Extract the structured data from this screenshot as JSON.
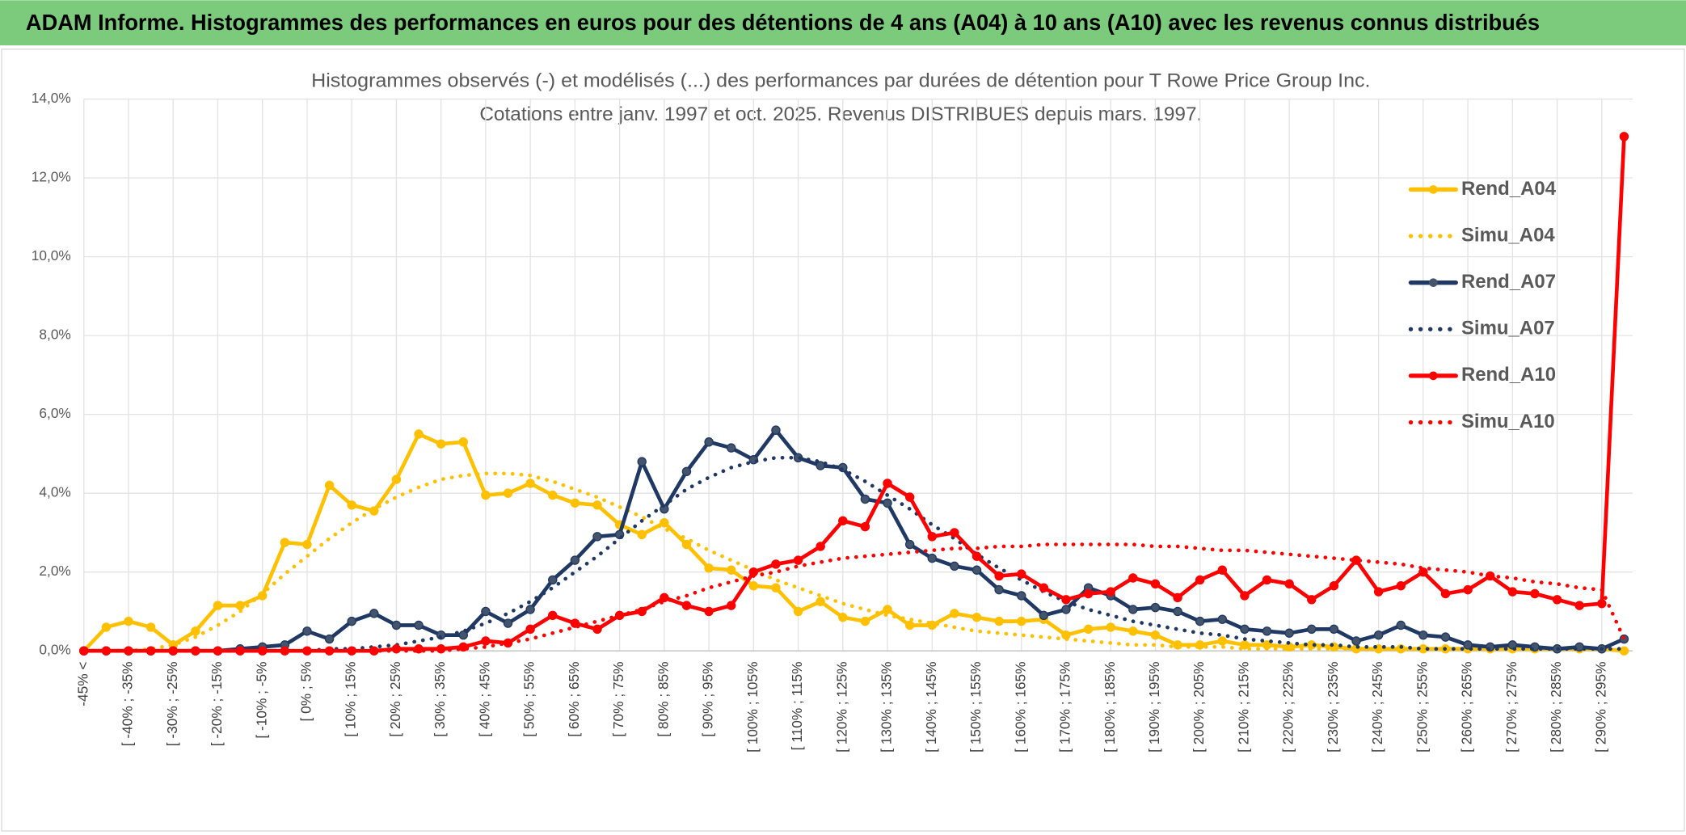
{
  "header": {
    "title": "ADAM Informe. Histogrammes des performances en euros pour des détentions de 4 ans (A04) à 10 ans (A10) avec les revenus connus distribués"
  },
  "chart_data": {
    "type": "line",
    "title": "Histogrammes observés (-) et modélisés (...) des performances par durées de détention pour T Rowe Price Group Inc.",
    "subtitle": "Cotations entre janv. 1997 et oct. 2025. Revenus DISTRIBUES depuis mars. 1997.",
    "categories": [
      "-45% <",
      null,
      "[ -40% ; -35%",
      null,
      "[ -30% ; -25%",
      null,
      "[ -20% ; -15%",
      null,
      "[ -10% ; -5%",
      null,
      "[ 0% ; 5%",
      null,
      "[ 10% ; 15%",
      null,
      "[ 20% ; 25%",
      null,
      "[ 30% ; 35%",
      null,
      "[ 40% ; 45%",
      null,
      "[ 50% ; 55%",
      null,
      "[ 60% ; 65%",
      null,
      "[ 70% ; 75%",
      null,
      "[ 80% ; 85%",
      null,
      "[ 90% ; 95%",
      null,
      "[ 100% ; 105%",
      null,
      "[ 110% ; 115%",
      null,
      "[ 120% ; 125%",
      null,
      "[ 130% ; 135%",
      null,
      "[ 140% ; 145%",
      null,
      "[ 150% ; 155%",
      null,
      "[ 160% ; 165%",
      null,
      "[ 170% ; 175%",
      null,
      "[ 180% ; 185%",
      null,
      "[ 190% ; 195%",
      null,
      "[ 200% ; 205%",
      null,
      "[ 210% ; 215%",
      null,
      "[ 220% ; 225%",
      null,
      "[ 230% ; 235%",
      null,
      "[ 240% ; 245%",
      null,
      "[ 250% ; 255%",
      null,
      "[ 260% ; 265%",
      null,
      "[ 270% ; 275%",
      null,
      "[ 280% ; 285%",
      null,
      "[ 290% ; 295%",
      null
    ],
    "ylim": [
      0,
      14
    ],
    "yticks": [
      {
        "value": 0,
        "label": "0,0%"
      },
      {
        "value": 2,
        "label": "2,0%"
      },
      {
        "value": 4,
        "label": "4,0%"
      },
      {
        "value": 6,
        "label": "6,0%"
      },
      {
        "value": 8,
        "label": "8,0%"
      },
      {
        "value": 10,
        "label": "10,0%"
      },
      {
        "value": 12,
        "label": "12,0%"
      },
      {
        "value": 14,
        "label": "14,0%"
      }
    ],
    "grid": true,
    "legend": "right",
    "series": [
      {
        "name": "Rend_A04",
        "color": "#ffc000",
        "style": "solid",
        "marker": true,
        "values": [
          0,
          0.6,
          0.75,
          0.6,
          0.15,
          0.5,
          1.15,
          1.15,
          1.4,
          2.75,
          2.7,
          4.2,
          3.7,
          3.55,
          4.35,
          5.5,
          5.25,
          5.3,
          3.95,
          4.0,
          4.25,
          3.95,
          3.75,
          3.7,
          3.2,
          2.95,
          3.25,
          2.7,
          2.1,
          2.05,
          1.65,
          1.6,
          1.0,
          1.25,
          0.85,
          0.75,
          1.05,
          0.65,
          0.65,
          0.95,
          0.85,
          0.75,
          0.75,
          0.8,
          0.4,
          0.55,
          0.6,
          0.5,
          0.4,
          0.15,
          0.15,
          0.25,
          0.15,
          0.15,
          0.1,
          0.15,
          0.1,
          0.05,
          0.05,
          0.05,
          0.05,
          0.05,
          0.05,
          0.05,
          0.05,
          0.05,
          0.05,
          0.05,
          0.05,
          0
        ]
      },
      {
        "name": "Simu_A04",
        "color": "#ffc000",
        "style": "dotted",
        "marker": false,
        "values": [
          0,
          0,
          0,
          0.05,
          0.15,
          0.35,
          0.65,
          1.0,
          1.45,
          1.95,
          2.4,
          2.85,
          3.25,
          3.6,
          3.9,
          4.15,
          4.35,
          4.45,
          4.5,
          4.5,
          4.45,
          4.3,
          4.1,
          3.9,
          3.65,
          3.4,
          3.1,
          2.85,
          2.55,
          2.3,
          2.05,
          1.8,
          1.6,
          1.4,
          1.2,
          1.05,
          0.9,
          0.8,
          0.7,
          0.6,
          0.5,
          0.45,
          0.4,
          0.35,
          0.3,
          0.25,
          0.2,
          0.15,
          0.15,
          0.1,
          0.1,
          0.1,
          0.05,
          0.05,
          0.05,
          0.05,
          0.05,
          0.05,
          0.05,
          0.05,
          0.05,
          0.05,
          0.05,
          0.05,
          0.05,
          0.05,
          0.05,
          0.05,
          0.05,
          0
        ]
      },
      {
        "name": "Rend_A07",
        "color": "#1f3864",
        "style": "solid",
        "marker": true,
        "values": [
          0,
          0,
          0,
          0,
          0,
          0,
          0,
          0.05,
          0.1,
          0.15,
          0.5,
          0.3,
          0.75,
          0.95,
          0.65,
          0.65,
          0.4,
          0.4,
          1.0,
          0.7,
          1.05,
          1.8,
          2.3,
          2.9,
          2.95,
          4.8,
          3.6,
          4.55,
          5.3,
          5.15,
          4.85,
          5.6,
          4.9,
          4.7,
          4.65,
          3.85,
          3.75,
          2.7,
          2.35,
          2.15,
          2.05,
          1.55,
          1.4,
          0.9,
          1.05,
          1.6,
          1.4,
          1.05,
          1.1,
          1.0,
          0.75,
          0.8,
          0.55,
          0.5,
          0.45,
          0.55,
          0.55,
          0.25,
          0.4,
          0.65,
          0.4,
          0.35,
          0.15,
          0.1,
          0.15,
          0.1,
          0.05,
          0.1,
          0.05,
          0.3
        ]
      },
      {
        "name": "Simu_A07",
        "color": "#1f3864",
        "style": "dotted",
        "marker": false,
        "values": [
          0,
          0,
          0,
          0,
          0,
          0,
          0,
          0,
          0,
          0,
          0,
          0.05,
          0.05,
          0.1,
          0.15,
          0.25,
          0.35,
          0.5,
          0.7,
          0.95,
          1.25,
          1.6,
          2.0,
          2.4,
          2.85,
          3.3,
          3.7,
          4.1,
          4.4,
          4.65,
          4.8,
          4.9,
          4.9,
          4.8,
          4.6,
          4.3,
          3.95,
          3.6,
          3.2,
          2.85,
          2.45,
          2.1,
          1.8,
          1.5,
          1.25,
          1.05,
          0.9,
          0.75,
          0.65,
          0.55,
          0.45,
          0.4,
          0.3,
          0.25,
          0.2,
          0.15,
          0.15,
          0.1,
          0.1,
          0.1,
          0.05,
          0.05,
          0.05,
          0.05,
          0.05,
          0.05,
          0.05,
          0.05,
          0.05,
          0.05
        ]
      },
      {
        "name": "Rend_A10",
        "color": "#ff0000",
        "style": "solid",
        "marker": true,
        "values": [
          0,
          0,
          0,
          0,
          0,
          0,
          0,
          0,
          0,
          0,
          0,
          0,
          0,
          0,
          0.05,
          0.05,
          0.05,
          0.1,
          0.25,
          0.2,
          0.55,
          0.9,
          0.7,
          0.55,
          0.9,
          1.0,
          1.35,
          1.15,
          1.0,
          1.15,
          2.0,
          2.2,
          2.3,
          2.65,
          3.3,
          3.15,
          4.25,
          3.9,
          2.9,
          3.0,
          2.4,
          1.9,
          1.95,
          1.6,
          1.3,
          1.45,
          1.5,
          1.85,
          1.7,
          1.35,
          1.8,
          2.05,
          1.4,
          1.8,
          1.7,
          1.3,
          1.65,
          2.3,
          1.5,
          1.65,
          2.0,
          1.45,
          1.55,
          1.9,
          1.5,
          1.45,
          1.3,
          1.15,
          1.2,
          13.05
        ]
      },
      {
        "name": "Simu_A10",
        "color": "#ff0000",
        "style": "dotted",
        "marker": false,
        "values": [
          0,
          0,
          0,
          0,
          0,
          0,
          0,
          0,
          0,
          0,
          0,
          0,
          0,
          0,
          0,
          0,
          0,
          0.05,
          0.1,
          0.2,
          0.3,
          0.45,
          0.6,
          0.75,
          0.9,
          1.05,
          1.25,
          1.4,
          1.6,
          1.75,
          1.9,
          2.0,
          2.15,
          2.25,
          2.35,
          2.4,
          2.45,
          2.5,
          2.55,
          2.6,
          2.6,
          2.65,
          2.65,
          2.7,
          2.7,
          2.7,
          2.7,
          2.7,
          2.65,
          2.65,
          2.6,
          2.55,
          2.55,
          2.5,
          2.45,
          2.4,
          2.35,
          2.3,
          2.25,
          2.2,
          2.1,
          2.05,
          2.0,
          1.9,
          1.85,
          1.75,
          1.7,
          1.6,
          1.55,
          0.3
        ]
      }
    ]
  }
}
